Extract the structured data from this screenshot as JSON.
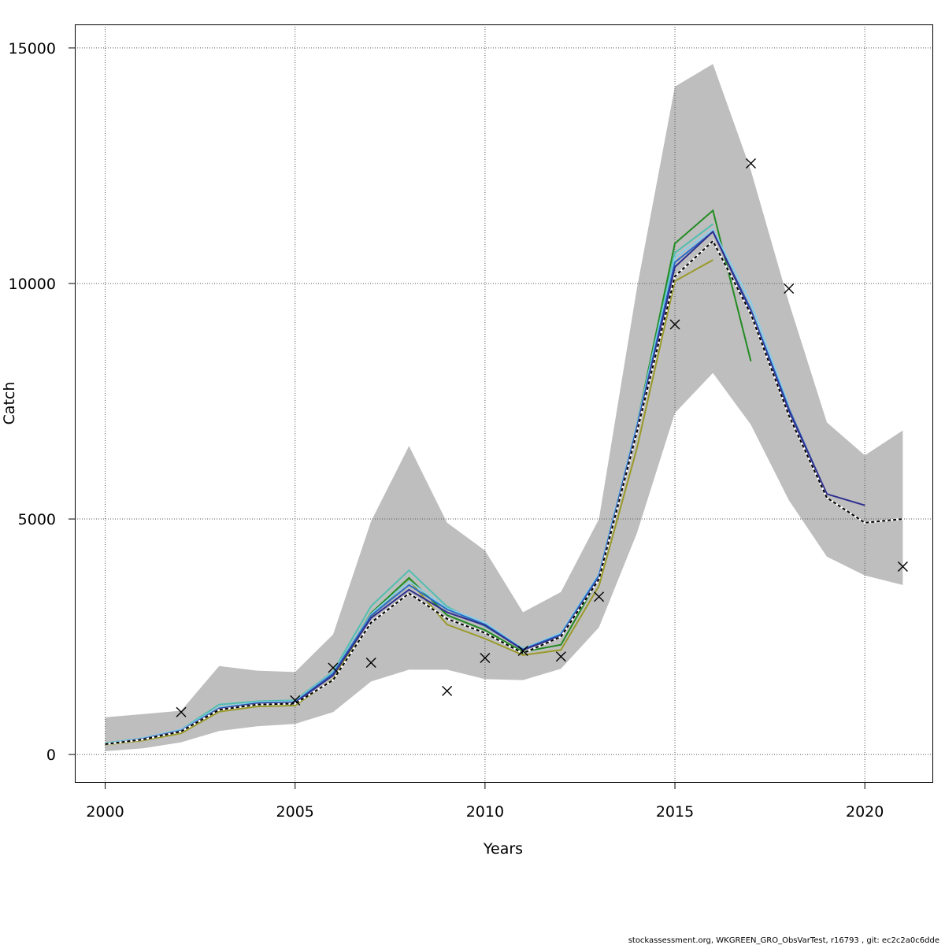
{
  "chart_data": {
    "type": "line",
    "xlabel": "Years",
    "ylabel": "Catch",
    "xlim": [
      1999.2,
      2021.8
    ],
    "ylim": [
      -600,
      15500
    ],
    "x_ticks": [
      2000,
      2005,
      2010,
      2015,
      2020
    ],
    "y_ticks": [
      0,
      5000,
      10000,
      15000
    ],
    "grid": true,
    "confidence_band": {
      "x": [
        2000,
        2001,
        2002,
        2003,
        2004,
        2005,
        2006,
        2007,
        2008,
        2009,
        2010,
        2011,
        2012,
        2013,
        2014,
        2015,
        2016,
        2017,
        2018,
        2019,
        2020,
        2021
      ],
      "lower": [
        70,
        130,
        260,
        500,
        600,
        650,
        900,
        1550,
        1800,
        1800,
        1600,
        1580,
        1820,
        2700,
        4700,
        7250,
        8100,
        7000,
        5400,
        4200,
        3800,
        3600
      ],
      "upper": [
        790,
        860,
        930,
        1880,
        1780,
        1750,
        2550,
        4950,
        6550,
        4920,
        4330,
        3020,
        3450,
        5000,
        9900,
        14180,
        14660,
        12400,
        9600,
        7050,
        6350,
        6880
      ],
      "color": "#bebebe"
    },
    "observed": {
      "x": [
        2002,
        2005,
        2006,
        2007,
        2009,
        2010,
        2011,
        2012,
        2013,
        2015,
        2017,
        2018,
        2021
      ],
      "y": [
        900,
        1150,
        1840,
        1950,
        1350,
        2050,
        2200,
        2080,
        3350,
        9130,
        12550,
        9890,
        3990
      ]
    },
    "series": [
      {
        "color": "#228b22",
        "x": [
          2000,
          2001,
          2002,
          2003,
          2004,
          2005,
          2006,
          2007,
          2008,
          2009,
          2010,
          2011,
          2012,
          2013,
          2014,
          2015,
          2016,
          2017
        ],
        "values": [
          230,
          330,
          500,
          960,
          1070,
          1110,
          1700,
          3000,
          3750,
          2960,
          2640,
          2180,
          2330,
          3750,
          7000,
          10850,
          11550,
          8350
        ]
      },
      {
        "color": "#4fbfb0",
        "x": [
          2000,
          2001,
          2002,
          2003,
          2004,
          2005,
          2006,
          2007,
          2008,
          2009,
          2010,
          2011,
          2012,
          2013,
          2014,
          2015,
          2016
        ],
        "values": [
          240,
          350,
          530,
          1060,
          1130,
          1150,
          1760,
          3150,
          3910,
          3140,
          2720,
          2250,
          2560,
          3820,
          7000,
          10650,
          11260
        ]
      },
      {
        "color": "#9a9a2a",
        "x": [
          2000,
          2001,
          2002,
          2003,
          2004,
          2005,
          2006,
          2007,
          2008,
          2009,
          2010,
          2011,
          2012,
          2013,
          2014,
          2015,
          2016
        ],
        "values": [
          210,
          300,
          450,
          910,
          1020,
          1040,
          1600,
          2930,
          3700,
          2760,
          2460,
          2110,
          2220,
          3580,
          6500,
          10050,
          10500
        ]
      },
      {
        "color": "#87ceeb",
        "x": [
          2000,
          2001,
          2002,
          2003,
          2004,
          2005,
          2006,
          2007,
          2008,
          2009,
          2010,
          2011,
          2012,
          2013,
          2014,
          2015,
          2016,
          2017,
          2018
        ],
        "values": [
          230,
          350,
          530,
          1000,
          1110,
          1130,
          1740,
          2980,
          3680,
          3100,
          2800,
          2240,
          2580,
          3830,
          7000,
          10550,
          11150,
          9600,
          7400
        ]
      },
      {
        "color": "#2b6cc4",
        "x": [
          2000,
          2001,
          2002,
          2003,
          2004,
          2005,
          2006,
          2007,
          2008,
          2009,
          2010,
          2011,
          2012,
          2013,
          2014,
          2015,
          2016,
          2017,
          2018,
          2019
        ],
        "values": [
          225,
          335,
          510,
          980,
          1090,
          1110,
          1720,
          2950,
          3600,
          3080,
          2760,
          2230,
          2550,
          3800,
          6950,
          10450,
          11100,
          9450,
          7350,
          5520
        ]
      },
      {
        "color": "#2f2f8f",
        "x": [
          2000,
          2001,
          2002,
          2003,
          2004,
          2005,
          2006,
          2007,
          2008,
          2009,
          2010,
          2011,
          2012,
          2013,
          2014,
          2015,
          2016,
          2017,
          2018,
          2019,
          2020
        ],
        "values": [
          220,
          330,
          500,
          970,
          1080,
          1100,
          1680,
          2900,
          3500,
          3020,
          2740,
          2220,
          2520,
          3750,
          6900,
          10350,
          11100,
          9400,
          7300,
          5530,
          5290
        ]
      },
      {
        "color": "#000000",
        "dashed": true,
        "x": [
          2000,
          2001,
          2002,
          2003,
          2004,
          2005,
          2006,
          2007,
          2008,
          2009,
          2010,
          2011,
          2012,
          2013,
          2014,
          2015,
          2016,
          2017,
          2018,
          2019,
          2020,
          2021
        ],
        "values": [
          220,
          320,
          490,
          950,
          1060,
          1080,
          1580,
          2800,
          3420,
          2880,
          2580,
          2150,
          2500,
          3720,
          6850,
          10150,
          10900,
          9350,
          7200,
          5450,
          4920,
          5000
        ]
      }
    ]
  },
  "footer": "stockassessment.org, WKGREEN_GRO_ObsVarTest, r16793 , git: ec2c2a0c6dde"
}
